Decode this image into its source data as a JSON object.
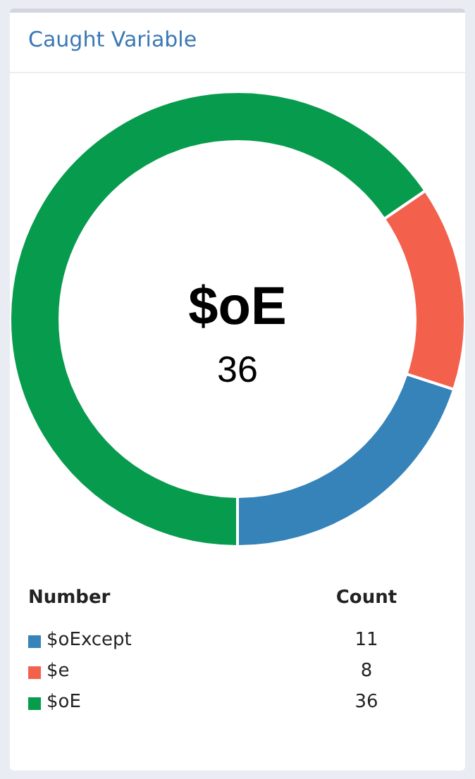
{
  "chart_data": {
    "type": "donut",
    "title": "Caught Variable",
    "categories": [
      "$oExcept",
      "$e",
      "$oE"
    ],
    "values": [
      11,
      8,
      36
    ],
    "colors": [
      "#3583b9",
      "#f3604c",
      "#079b4d"
    ],
    "annotations": [
      "$oE",
      "36",
      "Number",
      "Count"
    ],
    "data_labels": true,
    "legend": "bottom left"
  }
}
